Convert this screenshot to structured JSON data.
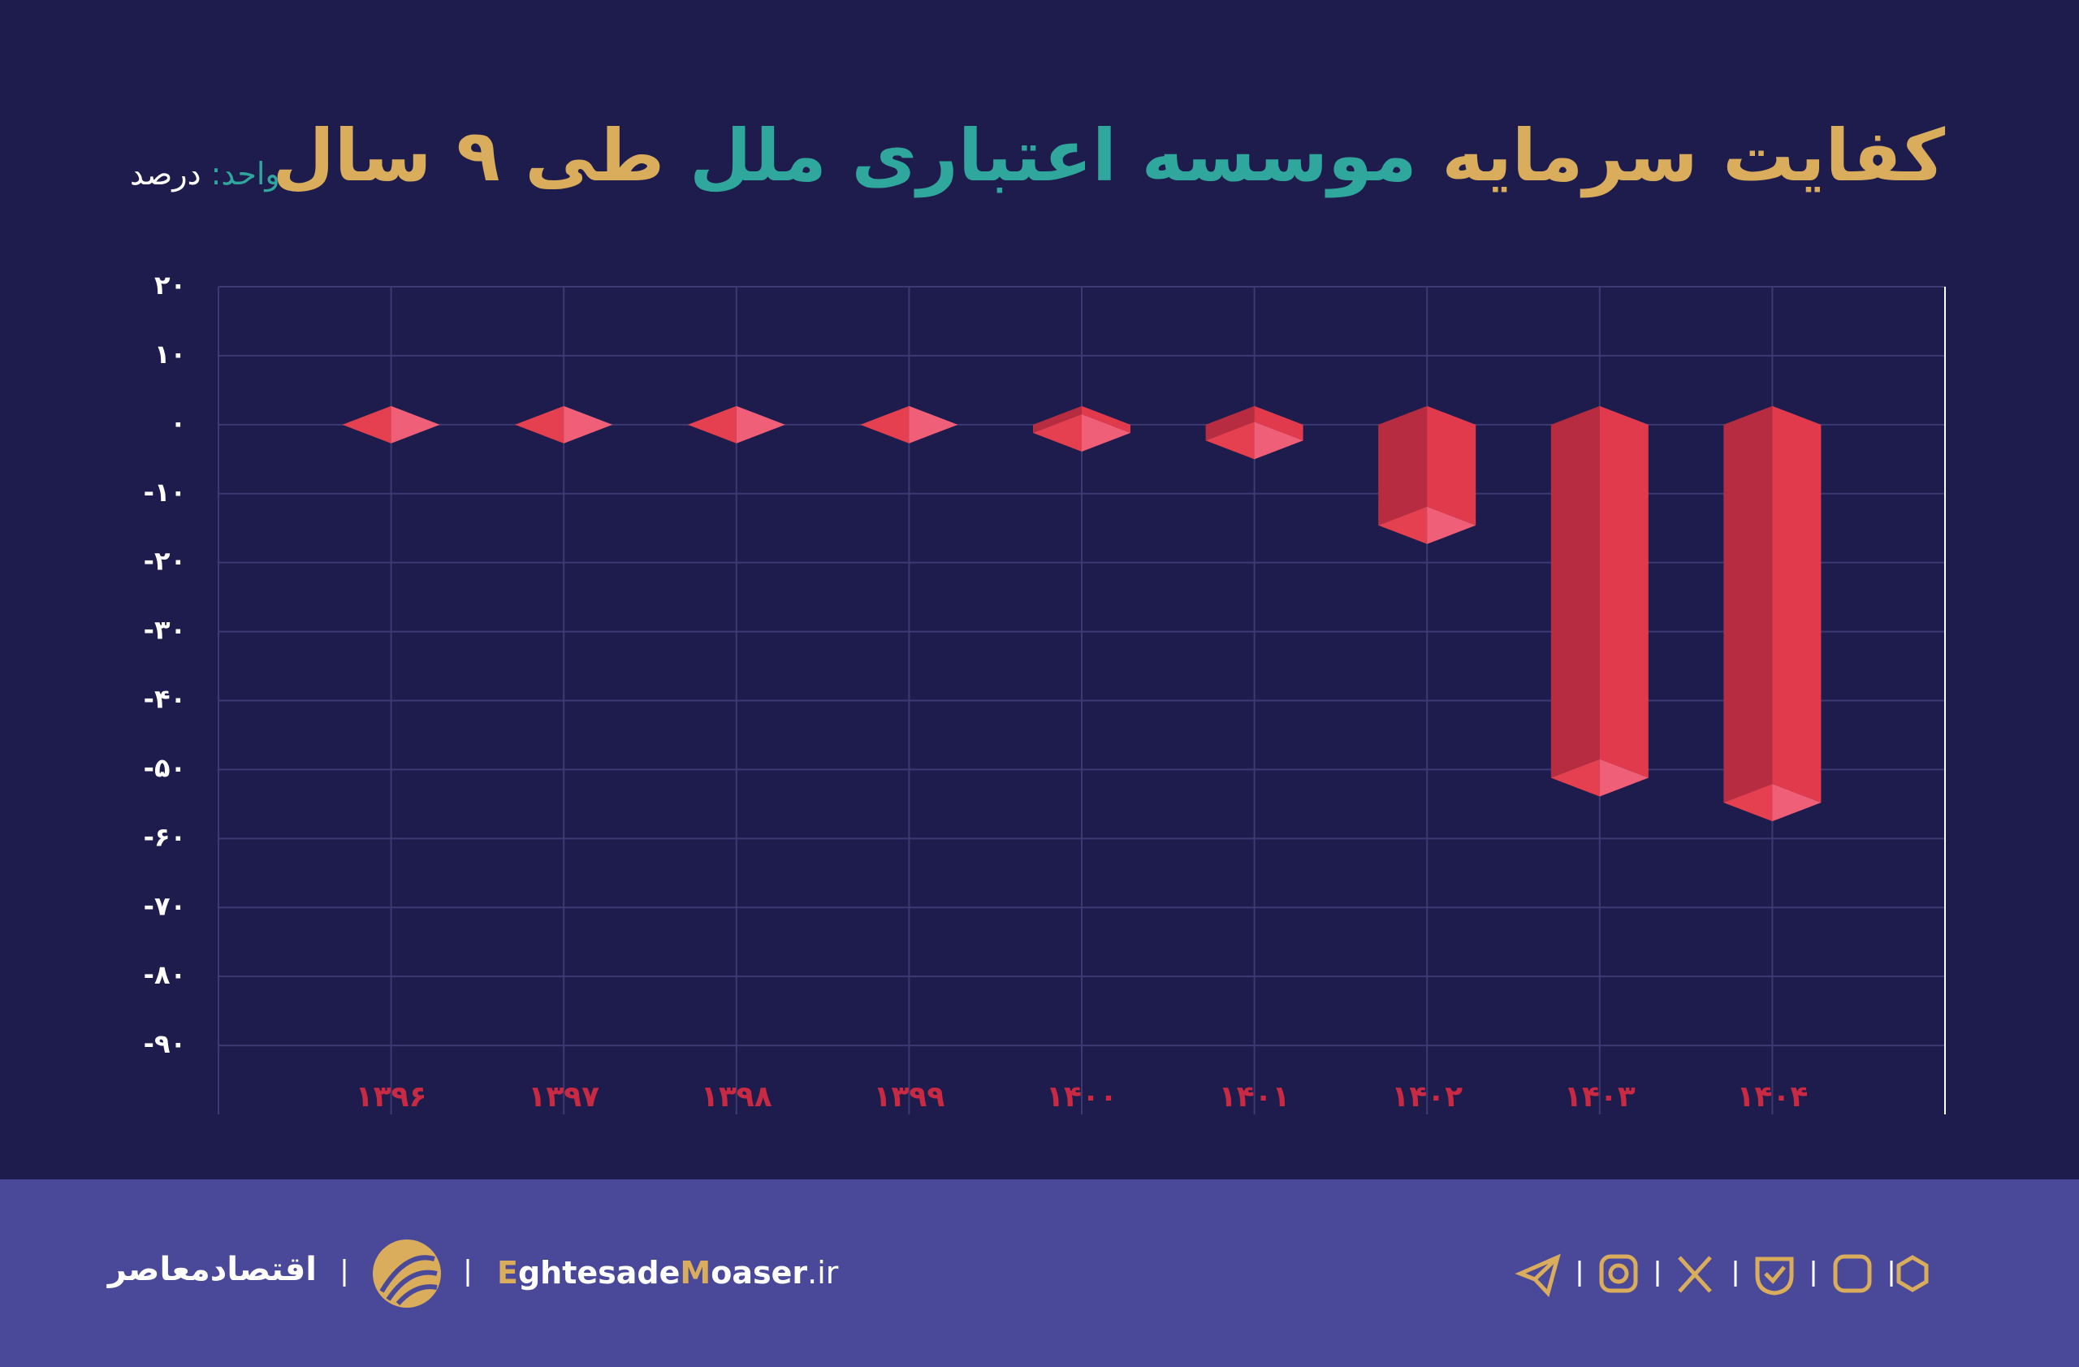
{
  "chart_data": {
    "type": "bar3d",
    "title": [
      "کفایت سرمایه",
      "موسسه اعتباری ملل",
      "طی ۹ سال"
    ],
    "unit_label": "واحد:",
    "unit": "درصد",
    "categories": [
      "۱۳۹۶",
      "۱۳۹۷",
      "۱۳۹۸",
      "۱۳۹۹",
      "۱۴۰۰",
      "۱۴۰۱",
      "۱۴۰۲",
      "۱۴۰۳",
      "۱۴۰۴"
    ],
    "values": [
      0,
      0,
      0,
      0,
      -1.2,
      -2.3,
      -14.6,
      -51.2,
      -54.8
    ],
    "color": "#e03a4c",
    "ylim": [
      -100,
      20
    ],
    "yticks": [
      {
        "value": 20,
        "label": "۲۰"
      },
      {
        "value": 10,
        "label": "۱۰"
      },
      {
        "value": 0,
        "label": "۰"
      },
      {
        "value": -10,
        "label": "-۱۰"
      },
      {
        "value": -20,
        "label": "-۲۰"
      },
      {
        "value": -30,
        "label": "-۳۰"
      },
      {
        "value": -40,
        "label": "-۴۰"
      },
      {
        "value": -50,
        "label": "-۵۰"
      },
      {
        "value": -60,
        "label": "-۶۰"
      },
      {
        "value": -70,
        "label": "-۷۰"
      },
      {
        "value": -80,
        "label": "-۸۰"
      },
      {
        "value": -90,
        "label": "-۹۰"
      }
    ],
    "grid": true
  },
  "footer": {
    "brand": "اقتصادمعاصر",
    "website": [
      "E",
      "ghtesade",
      "M",
      "oaser",
      ".ir"
    ]
  }
}
